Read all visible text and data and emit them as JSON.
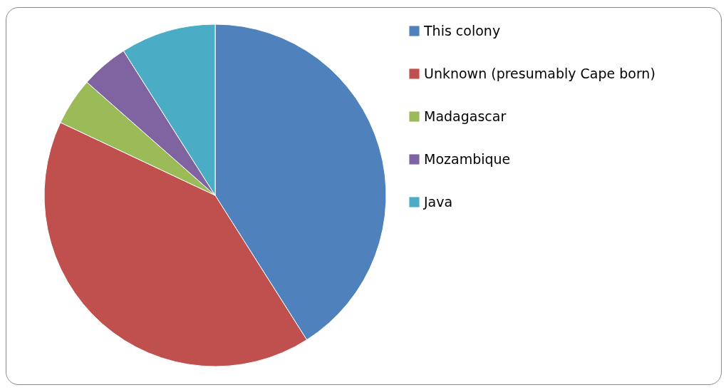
{
  "chart_data": {
    "type": "pie",
    "categories": [
      "This colony",
      "Unknown (presumably Cape born)",
      "Madagascar",
      "Mozambique",
      "Java"
    ],
    "values": [
      41,
      41,
      4.5,
      4.5,
      9
    ],
    "colors": [
      "#4f81bd",
      "#c0504d",
      "#9bbb59",
      "#8064a2",
      "#4bacc6"
    ],
    "legend": "right"
  }
}
